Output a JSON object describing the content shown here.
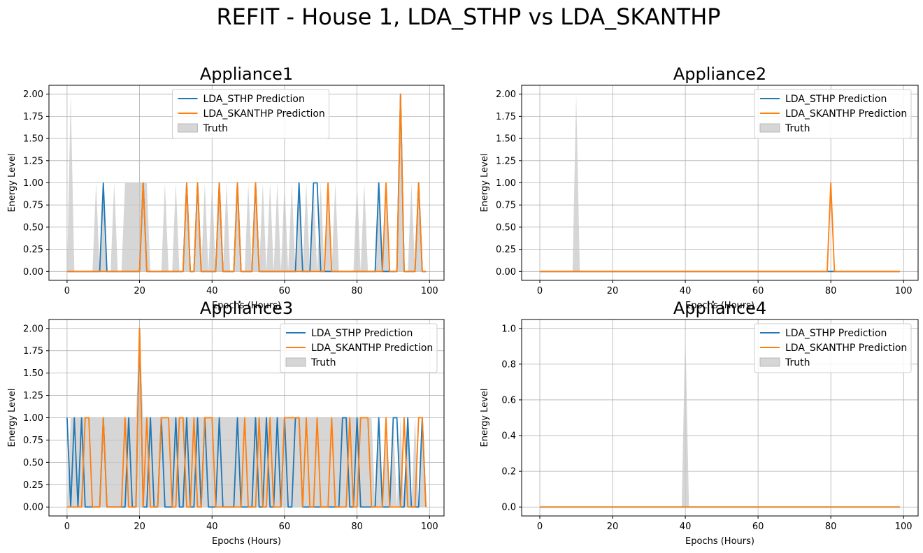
{
  "figure": {
    "suptitle": "REFIT - House 1, LDA_STHP vs LDA_SKANTHP"
  },
  "colors": {
    "sthp": "#1f77b4",
    "skanthp": "#ff7f0e",
    "truth": "#c8c8c8",
    "grid": "#b0b0b0"
  },
  "chart_data": [
    {
      "type": "line",
      "title": "Appliance1",
      "xlabel": "Epochs (Hours)",
      "ylabel": "Energy Level",
      "xlim": [
        -5,
        104
      ],
      "ylim": [
        -0.1,
        2.1
      ],
      "xticks": [
        0,
        20,
        40,
        60,
        80,
        100
      ],
      "yticks": [
        0,
        0.25,
        0.5,
        0.75,
        1.0,
        1.25,
        1.5,
        1.75,
        2.0
      ],
      "ytick_labels": [
        "0.00",
        "0.25",
        "0.50",
        "0.75",
        "1.00",
        "1.25",
        "1.50",
        "1.75",
        "2.00"
      ],
      "grid": true,
      "legend_position": "upper-center",
      "legend": [
        "LDA_STHP Prediction",
        "LDA_SKANTHP Prediction",
        "Truth"
      ],
      "series": [
        {
          "name": "LDA_STHP Prediction",
          "sparse": [
            [
              10,
              1
            ],
            [
              21,
              1
            ],
            [
              33,
              1
            ],
            [
              36,
              1
            ],
            [
              42,
              1
            ],
            [
              47,
              1
            ],
            [
              52,
              1
            ],
            [
              64,
              1
            ],
            [
              68,
              1
            ],
            [
              69,
              1
            ],
            [
              86,
              1
            ],
            [
              92,
              2
            ],
            [
              97,
              1
            ]
          ]
        },
        {
          "name": "LDA_SKANTHP Prediction",
          "sparse": [
            [
              21,
              1
            ],
            [
              33,
              1
            ],
            [
              36,
              1
            ],
            [
              42,
              1
            ],
            [
              47,
              1
            ],
            [
              52,
              1
            ],
            [
              72,
              1
            ],
            [
              88,
              1
            ],
            [
              92,
              2
            ],
            [
              97,
              1
            ]
          ]
        },
        {
          "name": "Truth",
          "sparse": [
            [
              1,
              2
            ],
            [
              8,
              1
            ],
            [
              10,
              1
            ],
            [
              13,
              1
            ],
            [
              16,
              1
            ],
            [
              17,
              1
            ],
            [
              18,
              1
            ],
            [
              19,
              1
            ],
            [
              20,
              1
            ],
            [
              21,
              1
            ],
            [
              22,
              1
            ],
            [
              27,
              1
            ],
            [
              30,
              1
            ],
            [
              33,
              1
            ],
            [
              36,
              1
            ],
            [
              38,
              1
            ],
            [
              40,
              1
            ],
            [
              42,
              1
            ],
            [
              44,
              1
            ],
            [
              47,
              1
            ],
            [
              50,
              1
            ],
            [
              52,
              1
            ],
            [
              54,
              1
            ],
            [
              56,
              1
            ],
            [
              58,
              1
            ],
            [
              60,
              1
            ],
            [
              62,
              1
            ],
            [
              64,
              1
            ],
            [
              66,
              1
            ],
            [
              68,
              1
            ],
            [
              70,
              1
            ],
            [
              72,
              1
            ],
            [
              74,
              1
            ],
            [
              80,
              1
            ],
            [
              82,
              1
            ],
            [
              86,
              1
            ],
            [
              88,
              1
            ],
            [
              92,
              2
            ],
            [
              95,
              1
            ],
            [
              97,
              1
            ]
          ]
        }
      ]
    },
    {
      "type": "line",
      "title": "Appliance2",
      "xlabel": "Epochs (Hours)",
      "ylabel": "Energy Level",
      "xlim": [
        -5,
        104
      ],
      "ylim": [
        -0.1,
        2.1
      ],
      "xticks": [
        0,
        20,
        40,
        60,
        80,
        100
      ],
      "yticks": [
        0,
        0.25,
        0.5,
        0.75,
        1.0,
        1.25,
        1.5,
        1.75,
        2.0
      ],
      "ytick_labels": [
        "0.00",
        "0.25",
        "0.50",
        "0.75",
        "1.00",
        "1.25",
        "1.50",
        "1.75",
        "2.00"
      ],
      "grid": true,
      "legend_position": "upper-right",
      "legend": [
        "LDA_STHP Prediction",
        "LDA_SKANTHP Prediction",
        "Truth"
      ],
      "series": [
        {
          "name": "LDA_STHP Prediction",
          "sparse": []
        },
        {
          "name": "LDA_SKANTHP Prediction",
          "sparse": [
            [
              80,
              1
            ]
          ]
        },
        {
          "name": "Truth",
          "sparse": [
            [
              10,
              2
            ]
          ]
        }
      ]
    },
    {
      "type": "line",
      "title": "Appliance3",
      "xlabel": "Epochs (Hours)",
      "ylabel": "Energy Level",
      "xlim": [
        -5,
        104
      ],
      "ylim": [
        -0.1,
        2.1
      ],
      "xticks": [
        0,
        20,
        40,
        60,
        80,
        100
      ],
      "yticks": [
        0,
        0.25,
        0.5,
        0.75,
        1.0,
        1.25,
        1.5,
        1.75,
        2.0
      ],
      "ytick_labels": [
        "0.00",
        "0.25",
        "0.50",
        "0.75",
        "1.00",
        "1.25",
        "1.50",
        "1.75",
        "2.00"
      ],
      "grid": true,
      "legend_position": "upper-right",
      "legend": [
        "LDA_STHP Prediction",
        "LDA_SKANTHP Prediction",
        "Truth"
      ],
      "series": [
        {
          "name": "LDA_STHP Prediction",
          "sparse": [
            [
              0,
              1
            ],
            [
              2,
              1
            ],
            [
              4,
              1
            ],
            [
              10,
              1
            ],
            [
              17,
              1
            ],
            [
              20,
              2
            ],
            [
              23,
              1
            ],
            [
              26,
              1
            ],
            [
              30,
              1
            ],
            [
              33,
              1
            ],
            [
              36,
              1
            ],
            [
              38,
              1
            ],
            [
              42,
              1
            ],
            [
              47,
              1
            ],
            [
              52,
              1
            ],
            [
              55,
              1
            ],
            [
              58,
              1
            ],
            [
              60,
              1
            ],
            [
              63,
              1
            ],
            [
              64,
              1
            ],
            [
              76,
              1
            ],
            [
              77,
              1
            ],
            [
              80,
              1
            ],
            [
              86,
              1
            ],
            [
              90,
              1
            ],
            [
              91,
              1
            ],
            [
              94,
              1
            ],
            [
              98,
              1
            ]
          ]
        },
        {
          "name": "LDA_SKANTHP Prediction",
          "sparse": [
            [
              5,
              1
            ],
            [
              6,
              1
            ],
            [
              10,
              1
            ],
            [
              16,
              1
            ],
            [
              20,
              2
            ],
            [
              22,
              1
            ],
            [
              26,
              1
            ],
            [
              27,
              1
            ],
            [
              28,
              1
            ],
            [
              31,
              1
            ],
            [
              32,
              1
            ],
            [
              35,
              1
            ],
            [
              38,
              1
            ],
            [
              39,
              1
            ],
            [
              40,
              1
            ],
            [
              49,
              1
            ],
            [
              53,
              1
            ],
            [
              56,
              1
            ],
            [
              60,
              1
            ],
            [
              61,
              1
            ],
            [
              62,
              1
            ],
            [
              63,
              1
            ],
            [
              64,
              1
            ],
            [
              66,
              1
            ],
            [
              69,
              1
            ],
            [
              73,
              1
            ],
            [
              78,
              1
            ],
            [
              81,
              1
            ],
            [
              82,
              1
            ],
            [
              83,
              1
            ],
            [
              88,
              1
            ],
            [
              93,
              1
            ],
            [
              97,
              1
            ],
            [
              98,
              1
            ]
          ]
        },
        {
          "name": "Truth",
          "sparse": [
            [
              1,
              1
            ],
            [
              2,
              1
            ],
            [
              3,
              1
            ],
            [
              4,
              1
            ],
            [
              5,
              1
            ],
            [
              6,
              1
            ],
            [
              7,
              1
            ],
            [
              8,
              1
            ],
            [
              9,
              1
            ],
            [
              10,
              1
            ],
            [
              11,
              1
            ],
            [
              12,
              1
            ],
            [
              13,
              1
            ],
            [
              14,
              1
            ],
            [
              15,
              1
            ],
            [
              16,
              1
            ],
            [
              17,
              1
            ],
            [
              18,
              1
            ],
            [
              19,
              1
            ],
            [
              20,
              2
            ],
            [
              21,
              1
            ],
            [
              22,
              1
            ],
            [
              23,
              1
            ],
            [
              24,
              1
            ],
            [
              25,
              1
            ],
            [
              26,
              1
            ],
            [
              27,
              1
            ],
            [
              28,
              1
            ],
            [
              29,
              1
            ],
            [
              30,
              1
            ],
            [
              31,
              1
            ],
            [
              32,
              1
            ],
            [
              33,
              1
            ],
            [
              34,
              1
            ],
            [
              35,
              1
            ],
            [
              36,
              1
            ],
            [
              37,
              1
            ],
            [
              38,
              1
            ],
            [
              39,
              1
            ],
            [
              40,
              1
            ],
            [
              41,
              1
            ],
            [
              42,
              1
            ],
            [
              43,
              1
            ],
            [
              44,
              1
            ],
            [
              45,
              1
            ],
            [
              46,
              1
            ],
            [
              47,
              1
            ],
            [
              48,
              1
            ],
            [
              49,
              1
            ],
            [
              50,
              1
            ],
            [
              51,
              1
            ],
            [
              52,
              1
            ],
            [
              53,
              1
            ],
            [
              54,
              1
            ],
            [
              55,
              1
            ],
            [
              56,
              1
            ],
            [
              57,
              1
            ],
            [
              58,
              1
            ],
            [
              59,
              1
            ],
            [
              60,
              1
            ],
            [
              61,
              1
            ],
            [
              62,
              1
            ],
            [
              63,
              1
            ],
            [
              64,
              1
            ],
            [
              65,
              1
            ],
            [
              66,
              1
            ],
            [
              67,
              1
            ],
            [
              68,
              1
            ],
            [
              69,
              1
            ],
            [
              70,
              1
            ],
            [
              71,
              1
            ],
            [
              72,
              1
            ],
            [
              73,
              1
            ],
            [
              74,
              1
            ],
            [
              75,
              1
            ],
            [
              76,
              1
            ],
            [
              77,
              1
            ],
            [
              78,
              1
            ],
            [
              79,
              1
            ],
            [
              80,
              1
            ],
            [
              81,
              1
            ],
            [
              82,
              1
            ],
            [
              83,
              1
            ],
            [
              84,
              1
            ],
            [
              86,
              1
            ],
            [
              88,
              1
            ],
            [
              90,
              1
            ],
            [
              92,
              1
            ],
            [
              94,
              1
            ],
            [
              96,
              1
            ],
            [
              98,
              1
            ]
          ]
        }
      ]
    },
    {
      "type": "line",
      "title": "Appliance4",
      "xlabel": "Epochs (Hours)",
      "ylabel": "Energy Level",
      "xlim": [
        -5,
        104
      ],
      "ylim": [
        -0.05,
        1.05
      ],
      "xticks": [
        0,
        20,
        40,
        60,
        80,
        100
      ],
      "yticks": [
        0,
        0.2,
        0.4,
        0.6,
        0.8,
        1.0
      ],
      "ytick_labels": [
        "0.0",
        "0.2",
        "0.4",
        "0.6",
        "0.8",
        "1.0"
      ],
      "grid": true,
      "legend_position": "upper-right",
      "legend": [
        "LDA_STHP Prediction",
        "LDA_SKANTHP Prediction",
        "Truth"
      ],
      "series": [
        {
          "name": "LDA_STHP Prediction",
          "sparse": []
        },
        {
          "name": "LDA_SKANTHP Prediction",
          "sparse": []
        },
        {
          "name": "Truth",
          "sparse": [
            [
              40,
              1
            ]
          ]
        }
      ]
    }
  ]
}
